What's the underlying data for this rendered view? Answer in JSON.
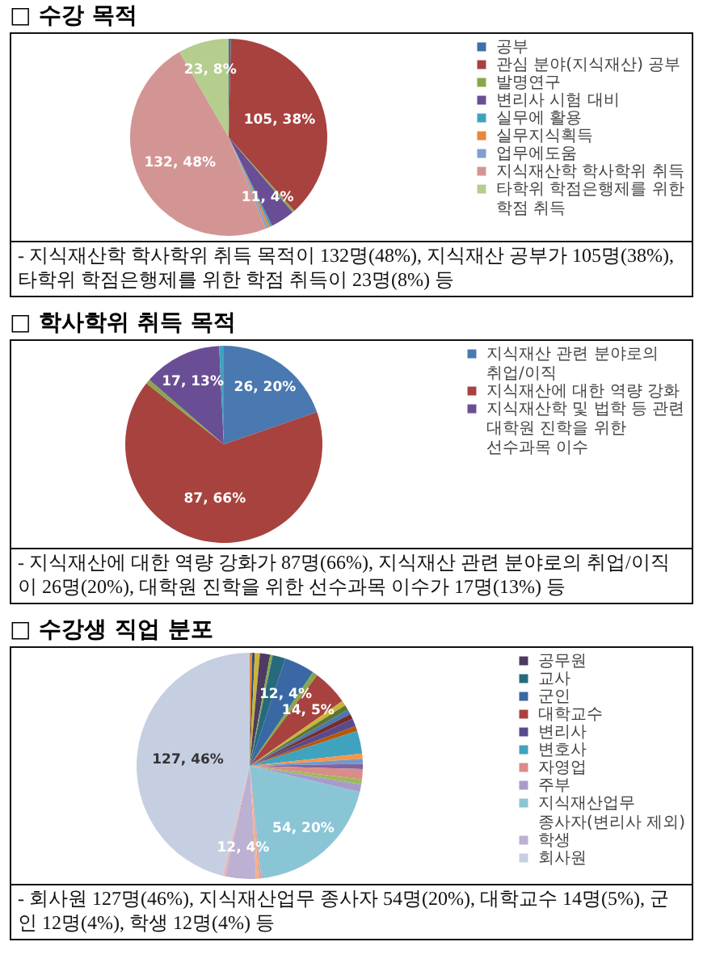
{
  "chart_data": [
    {
      "type": "pie",
      "title": "□ 수강 목적",
      "categories": [
        "공부",
        "관심 분야(지식재산) 공부",
        "발명연구",
        "변리사 시험 대비",
        "실무에 활용",
        "실무지식획득",
        "업무에도움",
        "지식재산학 학사학위 취득",
        "타학위 학점은행제를 위한 학점 취득"
      ],
      "values": [
        1,
        105,
        1,
        11,
        1,
        1,
        1,
        132,
        23
      ],
      "value_labels": [
        null,
        "105, 38%",
        null,
        "11, 4%",
        null,
        null,
        null,
        "132, 48%",
        "23, 8%"
      ],
      "colors": [
        "#3e6fa8",
        "#a8423f",
        "#86a84a",
        "#6a4e95",
        "#3fa3bf",
        "#e8883a",
        "#7f9fd0",
        "#d39594",
        "#b5cd8d"
      ],
      "legend": "right",
      "annotations": [
        "- 지식재산학 학사학위 취득 목적이 132명(48%), 지식재산 공부가 105명(38%), 타학위 학점은행제를 위한 학점 취득이 23명(8%) 등"
      ]
    },
    {
      "type": "pie",
      "title": "□ 학사학위 취득 목적",
      "categories": [
        "지식재산 관련 분야로의 취업/이직",
        "지식재산에 대한 역량 강화",
        null,
        "지식재산학 및 법학 등 관련 대학원 진학을 위한 선수과목 이수",
        null
      ],
      "values": [
        26,
        87,
        1,
        17,
        1
      ],
      "value_labels": [
        "26, 20%",
        "87, 66%",
        null,
        "17, 13%",
        null
      ],
      "colors": [
        "#4a78b0",
        "#a8423f",
        "#86a84a",
        "#6a4e95",
        "#3fa3bf"
      ],
      "legend": "right",
      "annotations": [
        "- 지식재산에 대한 역량 강화가 87명(66%), 지식재산 관련 분야로의 취업/이직이 26명(20%), 대학원 진학을 위한 선수과목 이수가 17명(13%) 등"
      ]
    },
    {
      "type": "pie",
      "title": "□ 수강생 직업 분포",
      "categories": [
        null,
        null,
        null,
        "공무원",
        null,
        "교사",
        "군인",
        null,
        "대학교수",
        null,
        null,
        null,
        null,
        "변리사",
        null,
        "변호사",
        null,
        null,
        null,
        "자영업",
        null,
        "주부",
        "지식재산업무 종사자(변리사 제외)",
        null,
        null,
        "학생",
        null,
        "회사원"
      ],
      "values": [
        1,
        1,
        2,
        4,
        1,
        5,
        12,
        2,
        14,
        2,
        2,
        2,
        2,
        3,
        2,
        9,
        2,
        2,
        2,
        4,
        2,
        3,
        54,
        1,
        1,
        12,
        1,
        127
      ],
      "value_labels": [
        null,
        null,
        null,
        null,
        null,
        null,
        "12, 4%",
        null,
        "14, 5%",
        null,
        null,
        null,
        null,
        null,
        null,
        null,
        null,
        null,
        null,
        null,
        null,
        null,
        "54, 20%",
        null,
        null,
        "12, 4%",
        null,
        "127, 46%"
      ],
      "colors": [
        "#e8883a",
        "#2c4d75",
        "#c9b53a",
        "#4d3b62",
        "#86a84a",
        "#276a7c",
        "#3a68a5",
        "#86a84a",
        "#a8423f",
        "#c9b53a",
        "#5f7530",
        "#4a78b0",
        "#772c2a",
        "#5a4a8c",
        "#b65708",
        "#3fa3bf",
        "#f79646",
        "#729aca",
        "#8064a2",
        "#d98c88",
        "#9bbb59",
        "#a99bc9",
        "#8ac5d5",
        "#e6a0a0",
        "#f4b183",
        "#bcb0d3",
        "#e8b4b4",
        "#c6cfe2"
      ],
      "legend": "right",
      "annotations": [
        "- 회사원 127명(46%), 지식재산업무 종사자 54명(20%), 대학교수 14명(5%), 군인 12명(4%), 학생 12명(4%) 등"
      ]
    }
  ]
}
